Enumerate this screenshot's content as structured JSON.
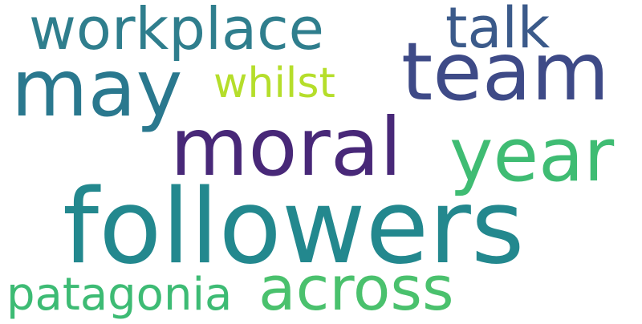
{
  "words": [
    {
      "id": "workplace",
      "text": "workplace",
      "color": "#2f7e8d"
    },
    {
      "id": "talk",
      "text": "talk",
      "color": "#3b5a8a"
    },
    {
      "id": "team",
      "text": "team",
      "color": "#3e4a87"
    },
    {
      "id": "may",
      "text": "may",
      "color": "#2a788e"
    },
    {
      "id": "whilst",
      "text": "whilst",
      "color": "#b5de2b"
    },
    {
      "id": "moral",
      "text": "moral",
      "color": "#482878"
    },
    {
      "id": "year",
      "text": "year",
      "color": "#3fbc73"
    },
    {
      "id": "followers",
      "text": "followers",
      "color": "#23888e"
    },
    {
      "id": "across",
      "text": "across",
      "color": "#4ac16d"
    },
    {
      "id": "patagonia",
      "text": "patagonia",
      "color": "#3dbb74"
    }
  ]
}
